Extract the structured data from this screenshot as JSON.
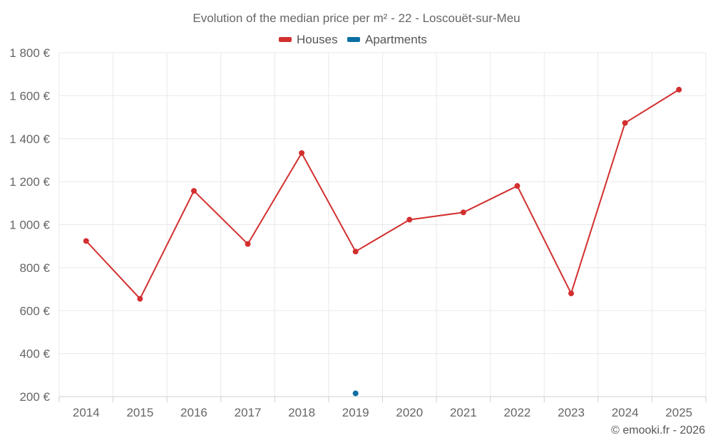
{
  "chart_data": {
    "type": "line",
    "title": "Evolution of the median price per m² - 22 - Loscouët-sur-Meu",
    "xlabel": "",
    "ylabel": "",
    "categories": [
      "2014",
      "2015",
      "2016",
      "2017",
      "2018",
      "2019",
      "2020",
      "2021",
      "2022",
      "2023",
      "2024",
      "2025"
    ],
    "ylim": [
      200,
      1800
    ],
    "yticks": [
      200,
      400,
      600,
      800,
      1000,
      1200,
      1400,
      1600,
      1800
    ],
    "ytick_labels": [
      "200 €",
      "400 €",
      "600 €",
      "800 €",
      "1 000 €",
      "1 200 €",
      "1 400 €",
      "1 600 €",
      "1 800 €"
    ],
    "grid": true,
    "legend_position": "top-center",
    "series": [
      {
        "name": "Houses",
        "color": "#d32f2f",
        "values": [
          924,
          655,
          1157,
          910,
          1333,
          875,
          1023,
          1057,
          1180,
          680,
          1473,
          1628
        ]
      },
      {
        "name": "Apartments",
        "color": "#0b6fa4",
        "values": [
          null,
          null,
          null,
          null,
          null,
          215,
          null,
          null,
          null,
          null,
          null,
          null
        ]
      }
    ]
  },
  "credit": "© emooki.fr - 2026"
}
